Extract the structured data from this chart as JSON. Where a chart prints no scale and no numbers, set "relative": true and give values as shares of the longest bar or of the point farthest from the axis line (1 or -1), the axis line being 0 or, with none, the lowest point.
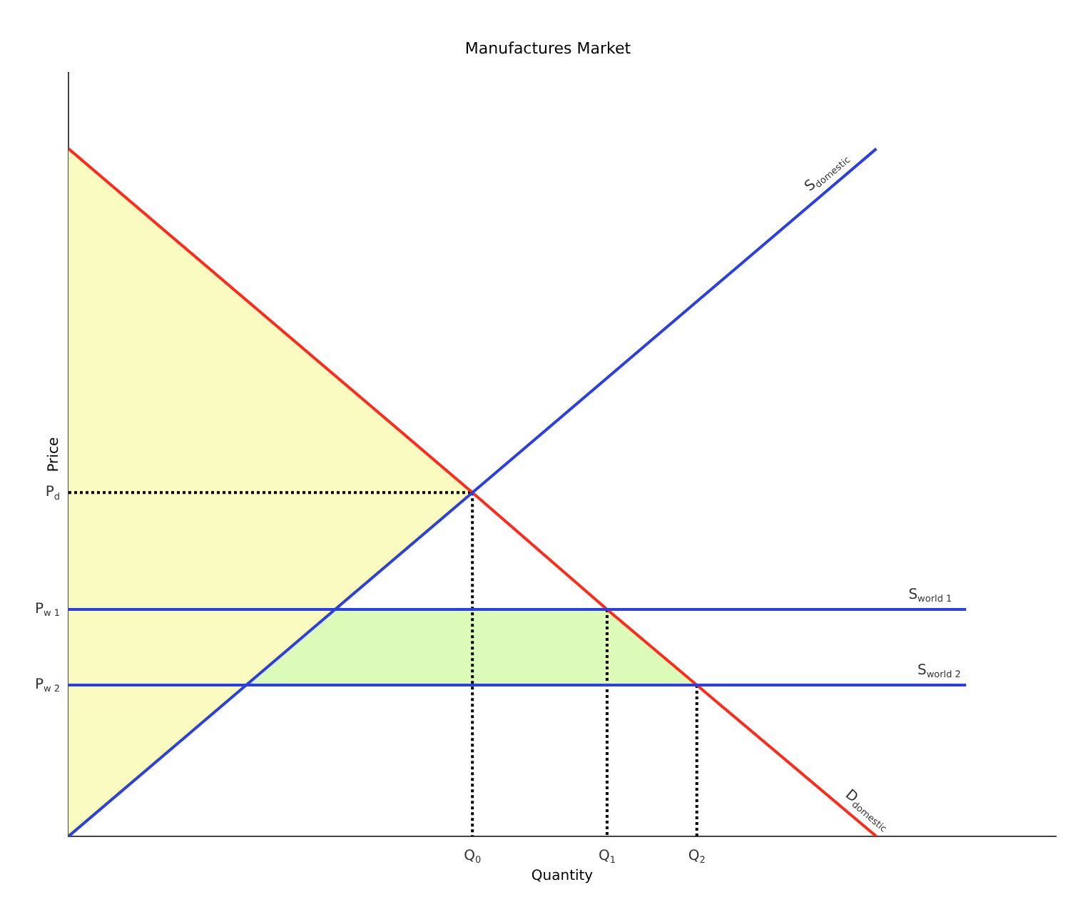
{
  "chart_data": {
    "type": "line",
    "title": "Manufactures Market",
    "xlabel": "Quantity",
    "ylabel": "Price",
    "relative": true,
    "legend": false,
    "grid": false,
    "annotations": [
      "P$_{d}$",
      "P$_{w 1}$",
      "P$_{w 2}$"
    ],
    "categories": [
      null,
      null,
      null,
      null,
      null,
      null,
      null,
      null,
      null,
      "Q$_{0}$",
      null,
      null,
      "Q$_{1}$",
      null,
      "Q$_{2}$",
      null,
      null,
      null,
      null,
      null,
      null,
      null,
      null
    ],
    "series": [
      {
        "line_style": "dotted",
        "color": "#000000",
        "values": [
          0.5,
          null,
          null,
          null,
          null,
          null,
          null,
          null,
          null,
          0.5,
          null,
          null,
          null,
          null,
          null,
          null,
          null,
          null,
          null,
          null,
          null,
          null,
          null
        ]
      },
      {
        "line_style": "dotted",
        "color": "#000000",
        "x": [
          "Q$_{0}$",
          "Q$_{0}$"
        ],
        "values": [
          0.5,
          0
        ]
      },
      {
        "line_style": "dotted",
        "color": "#000000",
        "x": [
          "Q$_{1}$",
          "Q$_{1}$"
        ],
        "values": [
          0.33,
          0
        ]
      },
      {
        "line_style": "dotted",
        "color": "#000000",
        "x": [
          "Q$_{2}$",
          "Q$_{2}$"
        ],
        "values": [
          0.22,
          0
        ]
      },
      {
        "name": "D$_{domestic}$",
        "color": "#ff2a1a",
        "values": [
          1,
          null,
          null,
          null,
          null,
          null,
          null,
          null,
          null,
          0.5,
          null,
          null,
          0.33,
          null,
          0.22,
          null,
          null,
          null,
          0,
          null,
          null,
          null,
          null
        ]
      },
      {
        "name": "S$_{domestic}$",
        "color": "#2a3fe8",
        "values": [
          0,
          null,
          null,
          null,
          null,
          null,
          null,
          null,
          null,
          0.5,
          null,
          null,
          null,
          null,
          null,
          null,
          null,
          null,
          1,
          null,
          null,
          null,
          null
        ]
      },
      {
        "type": "area",
        "color": "#fafbc0",
        "values": [
          1,
          null,
          null,
          null,
          null,
          null,
          null,
          null,
          null,
          0.5,
          null,
          null,
          null,
          null,
          null,
          null,
          null,
          null,
          null,
          null,
          null,
          null,
          null
        ]
      },
      {
        "name": "S$_{world 1}$",
        "color": "#2a3fe8",
        "values": [
          0.33,
          null,
          null,
          null,
          null,
          null,
          null,
          null,
          null,
          null,
          null,
          null,
          0.33,
          null,
          null,
          null,
          null,
          null,
          null,
          null,
          0.33,
          null,
          null
        ]
      },
      {
        "name": "S$_{world 2}$",
        "color": "#2a3fe8",
        "values": [
          0.22,
          null,
          null,
          null,
          null,
          null,
          null,
          null,
          null,
          null,
          null,
          null,
          null,
          null,
          0.22,
          null,
          null,
          null,
          null,
          null,
          0.22,
          null,
          null
        ]
      },
      {
        "type": "area",
        "color": "#ddfbb8",
        "values": [
          null,
          null,
          null,
          null,
          0.22,
          null,
          0.33,
          null,
          null,
          null,
          null,
          null,
          0.33,
          null,
          0.22,
          null,
          null,
          null,
          null,
          null,
          null,
          null,
          null
        ]
      }
    ]
  }
}
